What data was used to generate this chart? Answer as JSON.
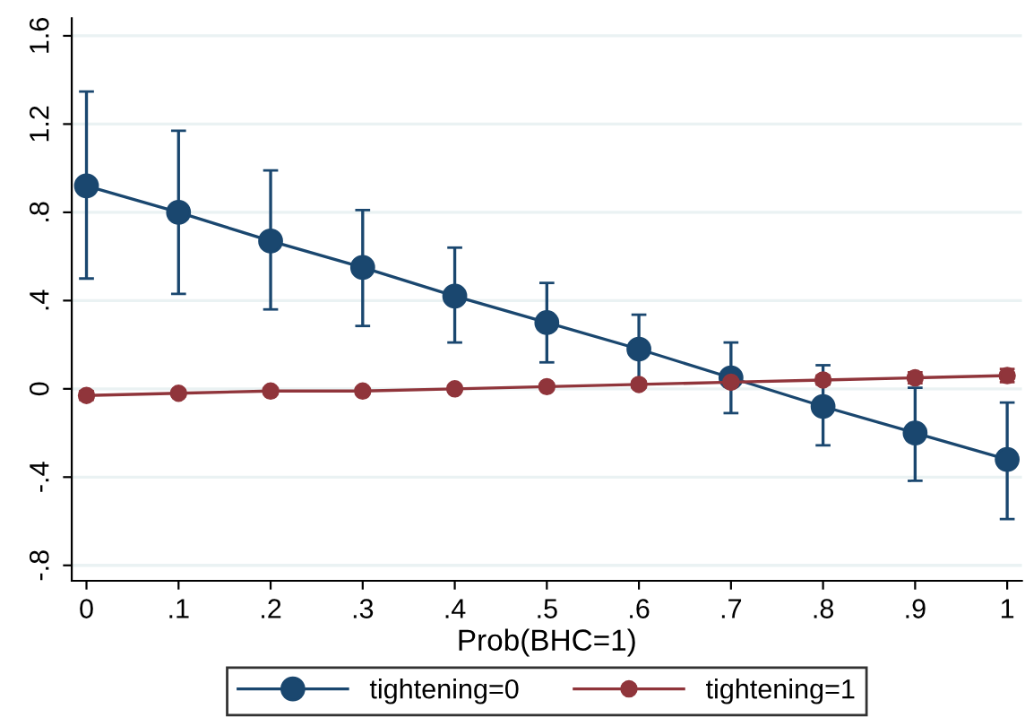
{
  "chart_data": {
    "type": "line",
    "xlabel": "Prob(BHC=1)",
    "x": [
      0,
      0.1,
      0.2,
      0.3,
      0.4,
      0.5,
      0.6,
      0.7,
      0.8,
      0.9,
      1
    ],
    "series": [
      {
        "name": "tightening=0",
        "color": "#1a476f",
        "values": [
          0.92,
          0.8,
          0.67,
          0.55,
          0.42,
          0.3,
          0.18,
          0.05,
          -0.08,
          -0.2,
          -0.32
        ],
        "errors": [
          [
            0.5,
            1.347
          ],
          [
            0.43,
            1.17
          ],
          [
            0.36,
            0.99
          ],
          [
            0.285,
            0.81
          ],
          [
            0.21,
            0.64
          ],
          [
            0.12,
            0.48
          ],
          [
            0.01,
            0.336
          ],
          [
            -0.11,
            0.21
          ],
          [
            -0.256,
            0.107
          ],
          [
            -0.417,
            0.005
          ],
          [
            -0.59,
            -0.062
          ]
        ]
      },
      {
        "name": "tightening=1",
        "color": "#90353b",
        "values": [
          -0.03,
          -0.02,
          -0.01,
          -0.01,
          0.0,
          0.01,
          0.02,
          0.03,
          0.04,
          0.05,
          0.06
        ],
        "errors": [
          0.02,
          0.015,
          0.015,
          0.015,
          0.015,
          0.015,
          0.015,
          0.02,
          0.02,
          0.025,
          0.03
        ]
      }
    ],
    "xlim": [
      -0.016,
      1.016
    ],
    "ylim": [
      -0.87,
      1.68
    ],
    "xticks": [
      0,
      {
        "value": 0.1,
        "label": ".1"
      },
      {
        "value": 0.2,
        "label": ".2"
      },
      {
        "value": 0.3,
        "label": ".3"
      },
      {
        "value": 0.4,
        "label": ".4"
      },
      {
        "value": 0.5,
        "label": ".5"
      },
      {
        "value": 0.6,
        "label": ".6"
      },
      {
        "value": 0.7,
        "label": ".7"
      },
      {
        "value": 0.8,
        "label": ".8"
      },
      {
        "value": 0.9,
        "label": ".9"
      },
      1
    ],
    "yticks": [
      {
        "value": -0.8,
        "label": "-.8"
      },
      {
        "value": -0.4,
        "label": "-.4"
      },
      0,
      {
        "value": 0.4,
        "label": ".4"
      },
      {
        "value": 0.8,
        "label": ".8"
      },
      1.2,
      1.6
    ],
    "grid": "y",
    "legend": "bottom",
    "marker": "circle",
    "line_style": "solid"
  }
}
